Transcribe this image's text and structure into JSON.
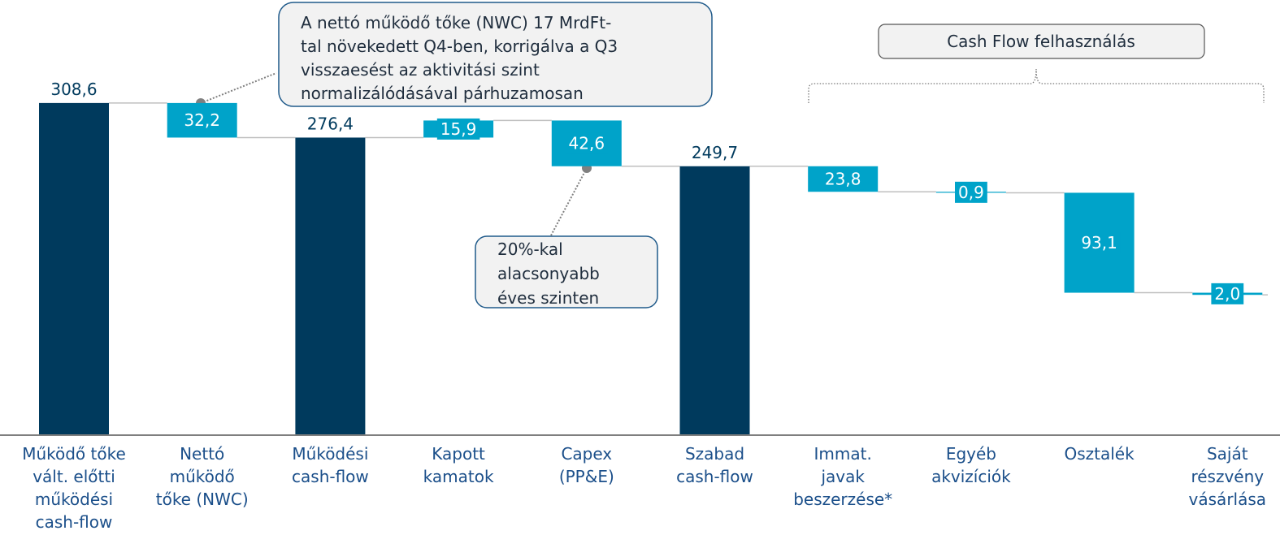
{
  "chart_data": {
    "type": "waterfall",
    "categories": [
      [
        "Működő tőke",
        "vált. előtti",
        "működési",
        "cash-flow"
      ],
      [
        "Nettó",
        "működő",
        "tőke (NWC)"
      ],
      [
        "Működési",
        "cash-flow"
      ],
      [
        "Kapott",
        "kamatok"
      ],
      [
        "Capex",
        "(PP&E)"
      ],
      [
        "Szabad",
        "cash-flow"
      ],
      [
        "Immat.",
        "javak",
        "beszerzése*"
      ],
      [
        "Egyéb",
        "akvizíciók"
      ],
      [
        "Osztalék"
      ],
      [
        "Saját",
        "részvény",
        "vásárlása"
      ]
    ],
    "values": [
      308.6,
      32.2,
      276.4,
      15.9,
      42.6,
      249.7,
      23.8,
      0.9,
      93.1,
      2.0
    ],
    "value_labels": [
      "308,6",
      "32,2",
      "276,4",
      "15,9",
      "42,6",
      "249,7",
      "23,8",
      "0,9",
      "93,1",
      "2,0"
    ],
    "measure": [
      "total",
      "decrease",
      "total",
      "increase",
      "decrease",
      "total",
      "decrease",
      "decrease",
      "decrease",
      "decrease"
    ],
    "colors": {
      "total": "#003a5d",
      "change": "#00a3c9"
    },
    "ylim": [
      0,
      400
    ],
    "annotations": [
      [
        "A nettó működő tőke (NWC)  17 MrdFt-",
        "tal növekedett Q4-ben, korrigálva a Q3",
        "visszaesést az aktivitási szint",
        "normalizálódásával párhuzamosan"
      ],
      [
        "20%-kal",
        "alacsonyabb",
        "éves szinten"
      ]
    ],
    "bracket_label": "Cash Flow felhasználás"
  }
}
